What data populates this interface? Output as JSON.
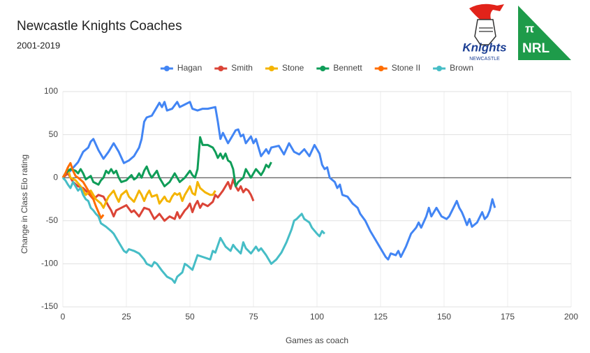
{
  "chart_data": {
    "type": "line",
    "title": "Newcastle Knights Coaches",
    "subtitle": "2001-2019",
    "x_label": "Games as coach",
    "y_label": "Change in Class Elo rating",
    "xlim": [
      0,
      200
    ],
    "xticks": [
      0,
      25,
      50,
      75,
      100,
      125,
      150,
      175,
      200
    ],
    "ylim": [
      -150,
      100
    ],
    "yticks": [
      -150,
      -100,
      -50,
      0,
      50,
      100
    ],
    "grid": true,
    "legend": "top",
    "series": [
      {
        "name": "Hagan",
        "color": "#4285f4",
        "x": [
          0,
          3,
          6,
          8,
          10,
          11,
          12,
          14,
          16,
          18,
          20,
          22,
          24,
          26,
          28,
          30,
          31,
          32,
          33,
          35,
          37,
          38,
          39,
          40,
          41,
          43,
          45,
          46,
          48,
          50,
          51,
          53,
          55,
          57,
          60,
          61,
          62,
          63,
          65,
          67,
          68,
          69,
          70,
          71,
          72,
          74,
          75,
          76,
          78,
          80,
          81,
          82,
          85,
          87,
          89,
          91,
          93,
          95,
          97,
          99,
          101,
          102,
          103,
          104,
          105,
          107,
          108,
          109,
          110,
          112,
          114,
          116,
          117,
          119,
          121,
          123,
          125,
          127,
          128,
          129,
          131,
          132,
          133,
          135,
          137,
          139,
          140,
          141,
          143,
          144,
          145,
          146,
          147,
          149,
          151,
          152,
          154,
          155,
          156,
          157,
          158,
          159,
          160,
          161,
          163,
          165,
          166,
          167,
          168,
          169,
          170
        ],
        "values": [
          0,
          8,
          18,
          30,
          35,
          42,
          45,
          32,
          22,
          30,
          40,
          30,
          17,
          20,
          25,
          35,
          45,
          65,
          70,
          72,
          82,
          87,
          82,
          88,
          78,
          80,
          88,
          82,
          85,
          88,
          80,
          78,
          80,
          80,
          82,
          65,
          45,
          52,
          40,
          50,
          55,
          56,
          48,
          50,
          40,
          48,
          40,
          45,
          25,
          33,
          28,
          35,
          37,
          27,
          40,
          30,
          27,
          33,
          25,
          38,
          28,
          15,
          10,
          12,
          0,
          -5,
          -12,
          -8,
          -20,
          -22,
          -30,
          -35,
          -42,
          -50,
          -62,
          -72,
          -82,
          -92,
          -95,
          -88,
          -90,
          -85,
          -92,
          -80,
          -65,
          -58,
          -52,
          -58,
          -45,
          -35,
          -45,
          -40,
          -35,
          -45,
          -48,
          -45,
          -33,
          -27,
          -35,
          -40,
          -47,
          -55,
          -48,
          -57,
          -52,
          -40,
          -48,
          -45,
          -38,
          -25,
          -35
        ]
      },
      {
        "name": "Smith",
        "color": "#db4437",
        "x": [
          0,
          2,
          4,
          6,
          8,
          10,
          12,
          14,
          16,
          18,
          19,
          20,
          21,
          23,
          25,
          27,
          28,
          30,
          32,
          34,
          36,
          38,
          40,
          42,
          44,
          45,
          46,
          48,
          49,
          50,
          51,
          52,
          53,
          54,
          55,
          57,
          59,
          60,
          61,
          63,
          65,
          66,
          67,
          68,
          69,
          70,
          71,
          72,
          73,
          74,
          75
        ],
        "values": [
          0,
          5,
          -5,
          -10,
          -12,
          -18,
          -25,
          -20,
          -22,
          -33,
          -38,
          -45,
          -38,
          -35,
          -32,
          -40,
          -38,
          -45,
          -35,
          -37,
          -48,
          -42,
          -50,
          -45,
          -48,
          -40,
          -47,
          -38,
          -35,
          -30,
          -40,
          -32,
          -27,
          -35,
          -30,
          -33,
          -28,
          -20,
          -23,
          -15,
          -5,
          -13,
          -2,
          -10,
          -15,
          -10,
          -17,
          -13,
          -15,
          -20,
          -27
        ]
      },
      {
        "name": "Stone",
        "color": "#f4b400",
        "x": [
          0,
          2,
          3,
          5,
          7,
          9,
          11,
          13,
          15,
          16,
          17,
          18,
          20,
          21,
          22,
          23,
          25,
          26,
          28,
          30,
          31,
          32,
          33,
          34,
          35,
          37,
          38,
          40,
          41,
          42,
          43,
          44,
          45,
          46,
          47,
          48,
          49,
          50,
          51,
          52,
          53,
          54,
          56,
          58,
          59,
          60
        ],
        "values": [
          0,
          10,
          0,
          -3,
          -10,
          -20,
          -15,
          -25,
          -30,
          -35,
          -28,
          -22,
          -15,
          -22,
          -28,
          -20,
          -15,
          -22,
          -28,
          -15,
          -20,
          -27,
          -20,
          -15,
          -22,
          -20,
          -30,
          -22,
          -27,
          -28,
          -22,
          -18,
          -20,
          -18,
          -27,
          -20,
          -15,
          -10,
          -18,
          -20,
          -5,
          -12,
          -17,
          -20,
          -20,
          -15
        ]
      },
      {
        "name": "Bennett",
        "color": "#0f9d58",
        "x": [
          0,
          1,
          3,
          5,
          6,
          7,
          8,
          9,
          10,
          11,
          12,
          14,
          15,
          16,
          17,
          18,
          19,
          20,
          21,
          22,
          23,
          25,
          26,
          27,
          28,
          29,
          30,
          31,
          32,
          33,
          34,
          35,
          37,
          38,
          39,
          40,
          42,
          44,
          45,
          46,
          48,
          50,
          51,
          52,
          53,
          54,
          55,
          57,
          59,
          60,
          61,
          62,
          63,
          64,
          65,
          66,
          67,
          68,
          69,
          71,
          72,
          73,
          74,
          75,
          76,
          78,
          79,
          80,
          81,
          82
        ],
        "values": [
          0,
          5,
          10,
          8,
          5,
          10,
          5,
          -2,
          0,
          2,
          -5,
          -8,
          -3,
          0,
          8,
          5,
          10,
          5,
          8,
          0,
          -5,
          -3,
          0,
          3,
          -2,
          0,
          5,
          0,
          8,
          13,
          5,
          0,
          8,
          0,
          -5,
          -10,
          -5,
          5,
          0,
          -5,
          0,
          8,
          3,
          0,
          10,
          47,
          38,
          38,
          35,
          30,
          23,
          28,
          22,
          28,
          20,
          18,
          10,
          -10,
          -5,
          0,
          10,
          5,
          0,
          5,
          10,
          3,
          8,
          15,
          12,
          18
        ]
      },
      {
        "name": "Stone II",
        "color": "#ff6d00",
        "x": [
          0,
          1,
          2,
          3,
          4,
          5,
          6,
          8,
          10,
          11,
          12,
          13,
          14,
          15,
          16
        ],
        "values": [
          0,
          5,
          12,
          17,
          8,
          2,
          0,
          -5,
          -15,
          -20,
          -25,
          -33,
          -40,
          -47,
          -43
        ]
      },
      {
        "name": "Brown",
        "color": "#46bdc6",
        "x": [
          0,
          1,
          2,
          3,
          4,
          5,
          6,
          7,
          8,
          9,
          10,
          11,
          12,
          13,
          14,
          15,
          17,
          19,
          20,
          22,
          24,
          25,
          26,
          28,
          30,
          32,
          33,
          35,
          36,
          37,
          39,
          41,
          43,
          44,
          45,
          47,
          48,
          49,
          51,
          53,
          55,
          58,
          59,
          60,
          62,
          64,
          66,
          67,
          68,
          70,
          71,
          72,
          74,
          76,
          77,
          78,
          80,
          82,
          84,
          86,
          88,
          90,
          91,
          92,
          93,
          94,
          95,
          97,
          98,
          100,
          101,
          102,
          103
        ],
        "values": [
          0,
          -3,
          -8,
          -12,
          -5,
          -10,
          -15,
          -12,
          -20,
          -25,
          -27,
          -35,
          -38,
          -42,
          -45,
          -53,
          -57,
          -62,
          -65,
          -75,
          -85,
          -87,
          -83,
          -85,
          -88,
          -95,
          -100,
          -103,
          -98,
          -100,
          -108,
          -115,
          -118,
          -122,
          -115,
          -110,
          -100,
          -102,
          -107,
          -90,
          -92,
          -95,
          -85,
          -87,
          -70,
          -80,
          -85,
          -78,
          -82,
          -88,
          -75,
          -82,
          -88,
          -80,
          -85,
          -82,
          -90,
          -100,
          -95,
          -87,
          -75,
          -60,
          -50,
          -48,
          -45,
          -42,
          -48,
          -52,
          -58,
          -65,
          -68,
          -62,
          -65
        ]
      }
    ]
  },
  "logos": {
    "knights": {
      "name": "Knights",
      "sub": "NEWCASTLE"
    },
    "nrl": {
      "symbol": "π",
      "name": "NRL"
    }
  }
}
